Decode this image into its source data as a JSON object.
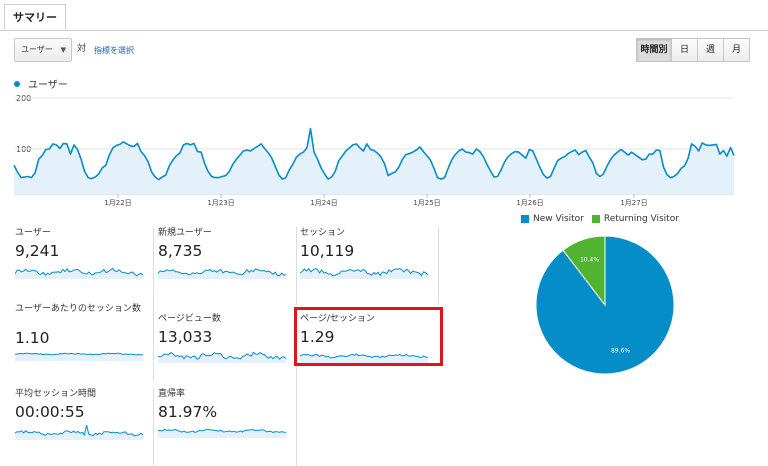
{
  "tab": {
    "label": "サマリー"
  },
  "controls": {
    "metric_select": "ユーザー",
    "vs": "対",
    "select_metric_link": "指標を選択",
    "granularity": [
      {
        "label": "時間別",
        "selected": true
      },
      {
        "label": "日",
        "selected": false
      },
      {
        "label": "週",
        "selected": false
      },
      {
        "label": "月",
        "selected": false
      }
    ]
  },
  "chart_data": {
    "type": "area",
    "series": [
      {
        "name": "ユーザー",
        "values": [
          68,
          55,
          44,
          45,
          46,
          44,
          54,
          80,
          87,
          99,
          100,
          110,
          108,
          101,
          111,
          110,
          90,
          108,
          99,
          80,
          56,
          44,
          42,
          45,
          51,
          63,
          68,
          88,
          102,
          107,
          109,
          114,
          110,
          106,
          105,
          111,
          95,
          87,
          75,
          55,
          45,
          40,
          45,
          49,
          67,
          78,
          87,
          92,
          108,
          111,
          108,
          111,
          95,
          94,
          72,
          56,
          46,
          44,
          44,
          46,
          48,
          56,
          70,
          80,
          88,
          96,
          98,
          96,
          101,
          105,
          110,
          101,
          93,
          83,
          66,
          50,
          41,
          44,
          59,
          70,
          84,
          90,
          94,
          102,
          140,
          94,
          80,
          63,
          51,
          41,
          45,
          56,
          77,
          86,
          96,
          102,
          108,
          110,
          102,
          96,
          110,
          99,
          97,
          92,
          84,
          71,
          48,
          52,
          55,
          64,
          79,
          89,
          91,
          94,
          98,
          104,
          95,
          87,
          78,
          62,
          44,
          41,
          44,
          62,
          78,
          89,
          96,
          100,
          94,
          93,
          90,
          100,
          95,
          85,
          70,
          57,
          45,
          46,
          59,
          75,
          85,
          91,
          95,
          94,
          88,
          82,
          99,
          96,
          80,
          64,
          50,
          43,
          46,
          62,
          77,
          82,
          85,
          91,
          95,
          98,
          89,
          94,
          97,
          84,
          73,
          52,
          46,
          51,
          66,
          79,
          88,
          94,
          99,
          94,
          88,
          94,
          89,
          84,
          79,
          80,
          90,
          90,
          98,
          97,
          65,
          50,
          44,
          46,
          52,
          62,
          67,
          82,
          110,
          105,
          96,
          112,
          108,
          107,
          108,
          109,
          90,
          97,
          86,
          103,
          87
        ]
      }
    ],
    "ylim": [
      0,
      200
    ],
    "yticks": [
      "200",
      "100"
    ],
    "xticks": [
      "1月22日",
      "1月23日",
      "1月24日",
      "1月25日",
      "1月26日",
      "1月27日"
    ],
    "color": "#058dc7",
    "fill": "#e5f1fa"
  },
  "metrics": [
    {
      "label": "ユーザー",
      "value": "9,241"
    },
    {
      "label": "新規ユーザー",
      "value": "8,735"
    },
    {
      "label": "セッション",
      "value": "10,119"
    },
    {
      "label": "ユーザーあたりのセッション数",
      "value": "1.10"
    },
    {
      "label": "ページビュー数",
      "value": "13,033"
    },
    {
      "label": "ページ/セッション",
      "value": "1.29"
    },
    {
      "label": "平均セッション時間",
      "value": "00:00:55"
    },
    {
      "label": "直帰率",
      "value": "81.97%"
    }
  ],
  "pie": {
    "legend": [
      {
        "name": "New Visitor",
        "color": "#058dc7"
      },
      {
        "name": "Returning Visitor",
        "color": "#50b432"
      }
    ],
    "values": [
      89.6,
      10.4
    ],
    "labels": [
      "89.6%",
      "10.4%"
    ]
  }
}
